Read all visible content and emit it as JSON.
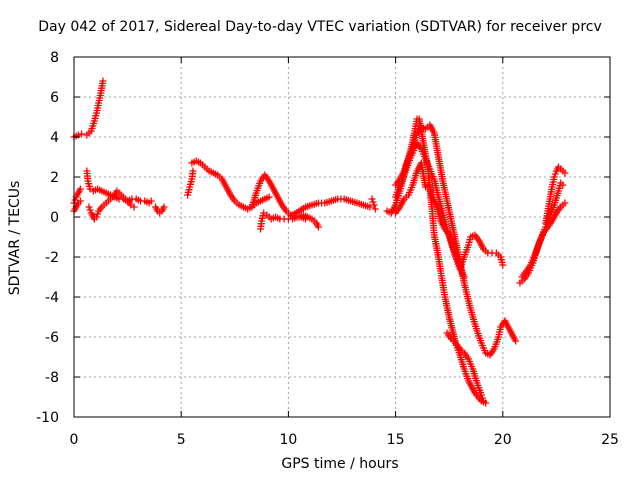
{
  "chart_data": {
    "type": "scatter",
    "title": "Day 042 of 2017, Sidereal Day-to-day VTEC variation (SDTVAR) for receiver prcv",
    "xlabel": "GPS time / hours",
    "ylabel": "SDTVAR / TECUs",
    "xlim": [
      0,
      25
    ],
    "ylim": [
      -10,
      8
    ],
    "xticks": [
      "0",
      "5",
      "10",
      "15",
      "20",
      "25"
    ],
    "yticks": [
      "-10",
      "-8",
      "-6",
      "-4",
      "-2",
      "0",
      "2",
      "4",
      "6",
      "8"
    ],
    "grid": true,
    "marker": "plus",
    "color": "#ff0000",
    "series": [
      {
        "segments": [
          [
            [
              0.0,
              4.0
            ],
            [
              0.2,
              4.1
            ],
            [
              0.35,
              4.15
            ]
          ],
          [
            [
              0.6,
              4.1
            ],
            [
              0.8,
              4.3
            ],
            [
              0.95,
              4.8
            ],
            [
              1.05,
              5.2
            ],
            [
              1.15,
              5.7
            ],
            [
              1.25,
              6.2
            ],
            [
              1.35,
              6.8
            ]
          ],
          [
            [
              0.0,
              0.7
            ],
            [
              0.1,
              1.0
            ],
            [
              0.2,
              1.2
            ],
            [
              0.3,
              1.4
            ]
          ],
          [
            [
              0.0,
              0.3
            ],
            [
              0.1,
              0.5
            ],
            [
              0.2,
              0.7
            ],
            [
              0.3,
              0.8
            ]
          ],
          [
            [
              0.6,
              2.3
            ],
            [
              0.65,
              1.8
            ],
            [
              0.75,
              1.4
            ],
            [
              0.9,
              1.3
            ],
            [
              1.1,
              1.4
            ],
            [
              1.3,
              1.3
            ],
            [
              1.5,
              1.2
            ],
            [
              1.7,
              1.1
            ],
            [
              1.9,
              1.0
            ],
            [
              2.1,
              0.9
            ],
            [
              2.3,
              0.9
            ],
            [
              2.5,
              0.8
            ],
            [
              2.7,
              0.9
            ],
            [
              2.9,
              0.9
            ],
            [
              3.1,
              0.8
            ],
            [
              3.3,
              0.8
            ],
            [
              3.5,
              0.7
            ],
            [
              3.6,
              0.8
            ]
          ],
          [
            [
              0.7,
              0.5
            ],
            [
              0.8,
              0.2
            ],
            [
              0.95,
              -0.1
            ],
            [
              1.05,
              0.0
            ],
            [
              1.15,
              0.3
            ],
            [
              1.3,
              0.5
            ],
            [
              1.5,
              0.7
            ],
            [
              1.7,
              0.9
            ],
            [
              1.9,
              1.1
            ],
            [
              2.0,
              1.3
            ],
            [
              2.1,
              1.2
            ],
            [
              2.3,
              1.0
            ],
            [
              2.5,
              0.8
            ],
            [
              2.65,
              0.6
            ],
            [
              2.8,
              0.5
            ]
          ],
          [
            [
              3.8,
              0.5
            ],
            [
              3.9,
              0.3
            ],
            [
              4.0,
              0.2
            ],
            [
              4.1,
              0.3
            ],
            [
              4.2,
              0.5
            ]
          ],
          [
            [
              5.3,
              1.1
            ],
            [
              5.4,
              1.5
            ],
            [
              5.5,
              1.9
            ],
            [
              5.55,
              2.3
            ]
          ],
          [
            [
              5.5,
              2.7
            ],
            [
              5.7,
              2.8
            ],
            [
              5.9,
              2.7
            ],
            [
              6.1,
              2.5
            ],
            [
              6.3,
              2.3
            ],
            [
              6.5,
              2.2
            ],
            [
              6.7,
              2.1
            ],
            [
              6.9,
              1.9
            ],
            [
              7.1,
              1.5
            ],
            [
              7.3,
              1.1
            ],
            [
              7.5,
              0.8
            ],
            [
              7.7,
              0.6
            ],
            [
              7.9,
              0.5
            ],
            [
              8.1,
              0.4
            ],
            [
              8.3,
              0.5
            ],
            [
              8.5,
              0.7
            ],
            [
              8.7,
              0.8
            ],
            [
              8.9,
              0.9
            ],
            [
              9.1,
              1.0
            ]
          ],
          [
            [
              8.7,
              -0.6
            ],
            [
              8.75,
              -0.2
            ],
            [
              8.85,
              0.2
            ],
            [
              9.0,
              0.1
            ],
            [
              9.2,
              -0.1
            ],
            [
              9.4,
              0.0
            ],
            [
              9.6,
              -0.1
            ],
            [
              9.8,
              -0.1
            ],
            [
              10.0,
              -0.1
            ],
            [
              10.2,
              -0.1
            ],
            [
              10.4,
              0.0
            ],
            [
              10.6,
              0.0
            ],
            [
              10.8,
              -0.1
            ]
          ],
          [
            [
              8.3,
              0.5
            ],
            [
              8.5,
              1.2
            ],
            [
              8.7,
              1.8
            ],
            [
              8.9,
              2.1
            ],
            [
              9.1,
              1.8
            ],
            [
              9.3,
              1.4
            ],
            [
              9.5,
              1.0
            ],
            [
              9.7,
              0.6
            ],
            [
              9.9,
              0.3
            ],
            [
              10.1,
              0.1
            ],
            [
              10.3,
              0.0
            ],
            [
              10.5,
              0.0
            ],
            [
              10.7,
              0.1
            ],
            [
              10.9,
              0.0
            ],
            [
              11.1,
              -0.1
            ],
            [
              11.3,
              -0.3
            ],
            [
              11.4,
              -0.5
            ]
          ],
          [
            [
              10.2,
              0.1
            ],
            [
              10.5,
              0.3
            ],
            [
              10.8,
              0.5
            ],
            [
              11.1,
              0.6
            ],
            [
              11.4,
              0.7
            ],
            [
              11.7,
              0.7
            ],
            [
              12.0,
              0.8
            ],
            [
              12.3,
              0.9
            ],
            [
              12.6,
              0.9
            ],
            [
              12.9,
              0.8
            ],
            [
              13.2,
              0.7
            ],
            [
              13.5,
              0.6
            ],
            [
              13.8,
              0.5
            ]
          ],
          [
            [
              13.9,
              0.9
            ],
            [
              14.0,
              0.6
            ],
            [
              14.05,
              0.4
            ]
          ],
          [
            [
              14.6,
              0.3
            ],
            [
              14.8,
              0.2
            ],
            [
              15.0,
              0.6
            ],
            [
              15.2,
              1.3
            ],
            [
              15.35,
              1.9
            ],
            [
              15.5,
              2.6
            ],
            [
              15.7,
              3.3
            ],
            [
              15.9,
              4.3
            ],
            [
              16.0,
              4.9
            ],
            [
              16.1,
              4.9
            ],
            [
              16.3,
              3.7
            ],
            [
              16.5,
              2.5
            ],
            [
              16.7,
              0.4
            ],
            [
              16.8,
              -0.9
            ],
            [
              17.0,
              -2.0
            ],
            [
              17.1,
              -2.7
            ],
            [
              17.3,
              -4.0
            ],
            [
              17.5,
              -5.0
            ],
            [
              17.8,
              -6.3
            ],
            [
              18.0,
              -6.9
            ],
            [
              18.2,
              -7.6
            ],
            [
              18.4,
              -8.2
            ],
            [
              18.7,
              -8.8
            ],
            [
              19.0,
              -9.2
            ],
            [
              19.2,
              -9.3
            ]
          ],
          [
            [
              15.0,
              1.6
            ],
            [
              15.2,
              1.9
            ],
            [
              15.4,
              2.3
            ],
            [
              15.6,
              2.9
            ],
            [
              15.8,
              3.5
            ],
            [
              16.0,
              4.2
            ],
            [
              16.2,
              4.5
            ],
            [
              16.4,
              4.4
            ],
            [
              16.6,
              4.6
            ],
            [
              16.8,
              4.2
            ],
            [
              17.0,
              3.0
            ],
            [
              17.2,
              1.8
            ],
            [
              17.4,
              0.8
            ],
            [
              17.6,
              -0.2
            ],
            [
              17.8,
              -1.2
            ],
            [
              18.0,
              -2.2
            ],
            [
              18.2,
              -3.3
            ],
            [
              18.4,
              -4.2
            ],
            [
              18.6,
              -5.0
            ],
            [
              18.8,
              -5.7
            ],
            [
              19.0,
              -6.3
            ],
            [
              19.2,
              -6.8
            ],
            [
              19.4,
              -6.9
            ],
            [
              19.6,
              -6.6
            ],
            [
              19.8,
              -6.0
            ],
            [
              19.9,
              -5.5
            ],
            [
              20.1,
              -5.2
            ]
          ],
          [
            [
              15.0,
              1.0
            ],
            [
              15.2,
              1.6
            ],
            [
              15.4,
              2.1
            ],
            [
              15.6,
              2.7
            ],
            [
              15.8,
              3.2
            ],
            [
              16.0,
              3.7
            ],
            [
              16.2,
              3.4
            ],
            [
              16.4,
              2.9
            ],
            [
              16.6,
              2.4
            ],
            [
              16.8,
              1.9
            ],
            [
              17.0,
              1.0
            ],
            [
              17.2,
              0.2
            ],
            [
              17.4,
              -0.6
            ],
            [
              17.6,
              -1.3
            ],
            [
              17.8,
              -2.0
            ],
            [
              18.0,
              -2.6
            ],
            [
              18.2,
              -2.0
            ],
            [
              18.4,
              -1.4
            ],
            [
              18.5,
              -1.0
            ],
            [
              18.7,
              -0.9
            ],
            [
              18.9,
              -1.2
            ],
            [
              19.1,
              -1.6
            ],
            [
              19.3,
              -1.8
            ],
            [
              19.5,
              -1.8
            ],
            [
              19.7,
              -1.8
            ],
            [
              19.9,
              -2.0
            ],
            [
              20.0,
              -2.4
            ]
          ],
          [
            [
              15.0,
              0.2
            ],
            [
              15.2,
              0.5
            ],
            [
              15.4,
              0.9
            ],
            [
              15.6,
              1.1
            ],
            [
              15.8,
              1.6
            ],
            [
              16.0,
              2.3
            ],
            [
              16.2,
              2.7
            ],
            [
              16.4,
              1.5
            ],
            [
              16.6,
              1.6
            ],
            [
              16.7,
              1.0
            ],
            [
              16.9,
              0.6
            ],
            [
              17.1,
              -0.2
            ],
            [
              17.3,
              -0.6
            ],
            [
              17.5,
              -0.9
            ],
            [
              17.7,
              -1.6
            ],
            [
              17.9,
              -2.2
            ],
            [
              18.1,
              -2.8
            ],
            [
              18.2,
              -3.0
            ]
          ],
          [
            [
              17.4,
              -5.8
            ],
            [
              17.6,
              -6.1
            ],
            [
              17.8,
              -6.3
            ],
            [
              18.0,
              -6.6
            ],
            [
              18.2,
              -6.8
            ],
            [
              18.4,
              -7.1
            ],
            [
              18.6,
              -7.6
            ],
            [
              18.8,
              -8.3
            ],
            [
              19.0,
              -8.9
            ],
            [
              19.1,
              -9.2
            ]
          ],
          [
            [
              20.1,
              -5.2
            ],
            [
              20.3,
              -5.6
            ],
            [
              20.5,
              -6.0
            ],
            [
              20.6,
              -6.2
            ]
          ],
          [
            [
              20.8,
              -3.3
            ],
            [
              21.0,
              -3.1
            ],
            [
              21.2,
              -2.8
            ],
            [
              21.4,
              -2.3
            ],
            [
              21.6,
              -1.6
            ],
            [
              21.8,
              -1.0
            ],
            [
              22.0,
              -0.5
            ],
            [
              22.2,
              0.0
            ],
            [
              22.4,
              0.6
            ],
            [
              22.6,
              1.3
            ],
            [
              22.7,
              1.7
            ],
            [
              22.8,
              1.6
            ]
          ],
          [
            [
              20.9,
              -3.0
            ],
            [
              21.1,
              -2.7
            ],
            [
              21.3,
              -2.4
            ],
            [
              21.5,
              -1.9
            ],
            [
              21.7,
              -1.3
            ],
            [
              21.9,
              -0.8
            ],
            [
              22.1,
              -0.5
            ],
            [
              22.3,
              -0.2
            ],
            [
              22.5,
              0.2
            ],
            [
              22.7,
              0.5
            ],
            [
              22.9,
              0.7
            ]
          ],
          [
            [
              22.0,
              -0.3
            ],
            [
              22.1,
              0.3
            ],
            [
              22.2,
              0.9
            ],
            [
              22.3,
              1.5
            ],
            [
              22.4,
              2.0
            ],
            [
              22.5,
              2.3
            ],
            [
              22.6,
              2.5
            ],
            [
              22.7,
              2.4
            ],
            [
              22.8,
              2.3
            ],
            [
              22.9,
              2.2
            ]
          ]
        ]
      }
    ]
  }
}
